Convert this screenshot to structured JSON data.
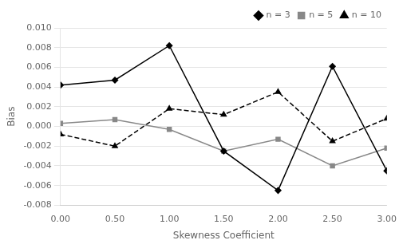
{
  "chart_data": {
    "type": "line",
    "xlabel": "Skewness Coefficient",
    "ylabel": "Bias",
    "x": [
      0.0,
      0.5,
      1.0,
      1.5,
      2.0,
      2.5,
      3.0
    ],
    "series": [
      {
        "name": "n = 3",
        "color": "#000000",
        "marker": "diamond",
        "line_style": "solid",
        "values": [
          0.0042,
          0.0047,
          0.0082,
          -0.0025,
          -0.0065,
          0.0061,
          -0.0045
        ]
      },
      {
        "name": "n = 5",
        "color": "#888888",
        "marker": "square",
        "line_style": "solid",
        "values": [
          0.0003,
          0.0007,
          -0.0003,
          -0.0025,
          -0.0013,
          -0.004,
          -0.0022
        ]
      },
      {
        "name": "n = 10",
        "color": "#000000",
        "marker": "triangle",
        "line_style": "dashed",
        "values": [
          -0.0008,
          -0.002,
          0.0018,
          0.0012,
          0.0035,
          -0.0015,
          0.0008
        ]
      }
    ],
    "xlim": [
      0.0,
      3.0
    ],
    "ylim": [
      -0.008,
      0.01
    ],
    "xticks": [
      {
        "value": 0,
        "label": "0.00"
      },
      {
        "value": 0.5,
        "label": "0.50"
      },
      {
        "value": 1,
        "label": "1.00"
      },
      {
        "value": 1.5,
        "label": "1.50"
      },
      {
        "value": 2,
        "label": "2.00"
      },
      {
        "value": 2.5,
        "label": "2.50"
      },
      {
        "value": 3,
        "label": "3.00"
      }
    ],
    "yticks": [
      -0.008,
      -0.006,
      -0.004,
      -0.002,
      {
        "value": 0,
        "label": "0.000"
      },
      0.002,
      0.004,
      0.006,
      0.008,
      {
        "value": 0.01,
        "label": "0.010"
      }
    ],
    "grid": "y",
    "legend": "upper right"
  }
}
